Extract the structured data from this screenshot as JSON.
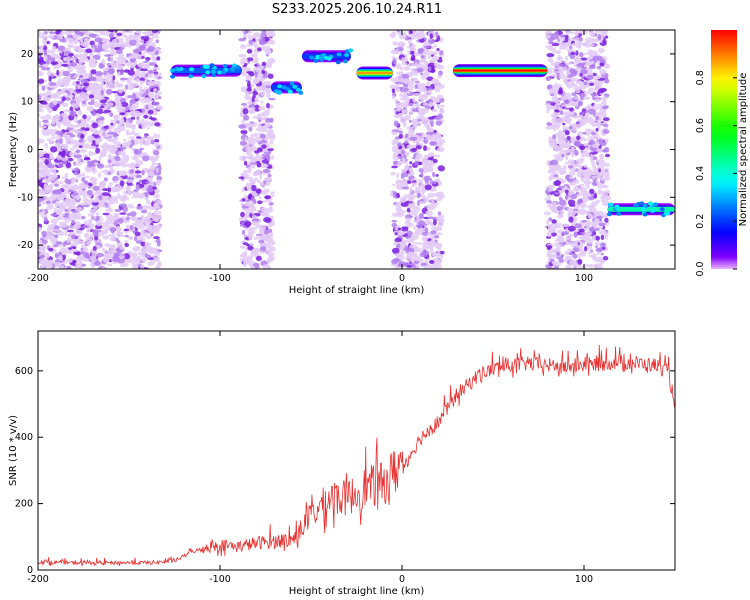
{
  "title": "S233.2025.206.10.24.R11",
  "chart_data": [
    {
      "type": "heatmap",
      "xlabel": "Height of straight line (km)",
      "ylabel": "Frequency (Hz)",
      "xlim": [
        -200,
        150
      ],
      "ylim": [
        -25,
        25
      ],
      "xticks": [
        -200,
        -100,
        0,
        100
      ],
      "yticks": [
        -20,
        -10,
        0,
        10,
        20
      ],
      "colorbar": {
        "label": "Normalized spectral amplitude",
        "range": [
          0,
          1
        ],
        "ticks": [
          0.0,
          0.2,
          0.4,
          0.6,
          0.8
        ]
      },
      "noise_bands_km": [
        [
          -200,
          -133
        ],
        [
          -88,
          -71
        ],
        [
          -5,
          22
        ],
        [
          80,
          113
        ]
      ],
      "ridges": [
        {
          "x_start": -127,
          "x_end": -88,
          "freq": 16.5,
          "amplitude": 0.25
        },
        {
          "x_start": -72,
          "x_end": -55,
          "freq": 13.0,
          "amplitude": 0.22
        },
        {
          "x_start": -55,
          "x_end": -28,
          "freq": 19.5,
          "amplitude": 0.22
        },
        {
          "x_start": -25,
          "x_end": -5,
          "freq": 16.0,
          "amplitude": 0.9
        },
        {
          "x_start": 28,
          "x_end": 80,
          "freq": 16.5,
          "amplitude": 1.0
        },
        {
          "x_start": 113,
          "x_end": 150,
          "freq": -12.5,
          "amplitude": 0.45
        }
      ]
    },
    {
      "type": "line",
      "xlabel": "Height of straight line (km)",
      "ylabel": "SNR (10 * v/v)",
      "xlim": [
        -200,
        150
      ],
      "ylim": [
        0,
        720
      ],
      "xticks": [
        -200,
        -100,
        0,
        100
      ],
      "yticks": [
        0,
        200,
        400,
        600
      ],
      "series": [
        {
          "color": "#e83030",
          "x": [
            -200,
            -180,
            -160,
            -140,
            -125,
            -115,
            -100,
            -90,
            -80,
            -70,
            -60,
            -50,
            -40,
            -30,
            -20,
            -10,
            0,
            10,
            20,
            30,
            40,
            50,
            60,
            70,
            80,
            90,
            100,
            110,
            120,
            130,
            140,
            146,
            150
          ],
          "y": [
            22,
            20,
            20,
            20,
            25,
            55,
            70,
            65,
            75,
            80,
            85,
            150,
            200,
            200,
            230,
            240,
            300,
            390,
            440,
            520,
            570,
            600,
            610,
            615,
            610,
            605,
            610,
            615,
            620,
            615,
            610,
            590,
            500
          ]
        }
      ]
    }
  ]
}
